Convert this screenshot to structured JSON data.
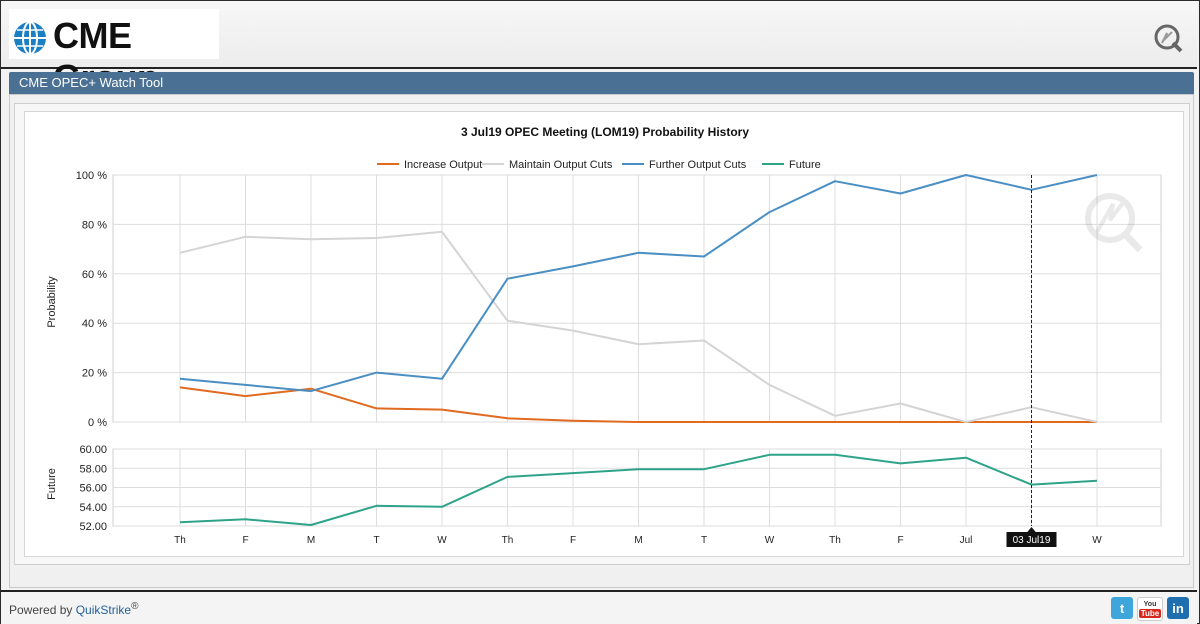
{
  "app": {
    "logo_text": "CME Group",
    "tool_title": "CME OPEC+ Watch Tool",
    "footer": {
      "powered_by": "Powered by ",
      "brand": "QuikStrike",
      "registered": "®"
    },
    "social": {
      "twitter": "t",
      "youtube_top": "You",
      "youtube_bottom": "Tube",
      "linkedin": "in"
    }
  },
  "chart_data": {
    "type": "line",
    "title": "3 Jul19 OPEC Meeting (LOM19) Probability History",
    "categories": [
      "Th",
      "F",
      "M",
      "T",
      "W",
      "Th",
      "F",
      "M",
      "T",
      "W",
      "Th",
      "F",
      "Jul",
      "03 Jul19",
      "W"
    ],
    "tooltip_label": "03 Jul19",
    "tooltip_index": 13,
    "legend_position": "top-center",
    "grid": true,
    "panels": [
      {
        "ylabel": "Probability",
        "ylim": [
          0,
          100
        ],
        "yticks": [
          "0 %",
          "20 %",
          "40 %",
          "60 %",
          "80 %",
          "100 %"
        ],
        "ytick_values": [
          0,
          20,
          40,
          60,
          80,
          100
        ],
        "series": [
          {
            "name": "Increase Output",
            "color": "#e06a20",
            "values": [
              14,
              10.5,
              13.5,
              5.5,
              5,
              1.5,
              0.5,
              0,
              0,
              0,
              0,
              0,
              0,
              0,
              0
            ]
          },
          {
            "name": "Maintain Output Cuts",
            "color": "#d4d4d4",
            "values": [
              68.5,
              75,
              74,
              74.5,
              77,
              41,
              37,
              31.5,
              33,
              15,
              2.5,
              7.5,
              0,
              6,
              0
            ]
          },
          {
            "name": "Further Output Cuts",
            "color": "#4a8fc4",
            "values": [
              17.5,
              15,
              12.5,
              20,
              17.5,
              58,
              63,
              68.5,
              67,
              85,
              97.5,
              92.5,
              100,
              94,
              100
            ]
          }
        ]
      },
      {
        "ylabel": "Future",
        "ylim": [
          52,
          60
        ],
        "yticks": [
          "52.00",
          "54.00",
          "56.00",
          "58.00",
          "60.00"
        ],
        "ytick_values": [
          52,
          54,
          56,
          58,
          60
        ],
        "series": [
          {
            "name": "Future",
            "color": "#2ea38a",
            "values": [
              52.4,
              52.7,
              52.1,
              54.1,
              54.0,
              57.1,
              57.5,
              57.9,
              57.9,
              59.4,
              59.4,
              58.5,
              59.1,
              56.3,
              56.7
            ]
          }
        ]
      }
    ],
    "legend": [
      "Increase Output",
      "Maintain Output Cuts",
      "Further Output Cuts",
      "Future"
    ]
  },
  "colors": {
    "header_bar": "#4a7194",
    "increase": "#e06a20",
    "maintain": "#d4d4d4",
    "further": "#4a8fc4",
    "future": "#2ea38a"
  },
  "icons": [
    "globe-icon",
    "quikstrike-icon",
    "twitter-icon",
    "youtube-icon",
    "linkedin-icon"
  ]
}
